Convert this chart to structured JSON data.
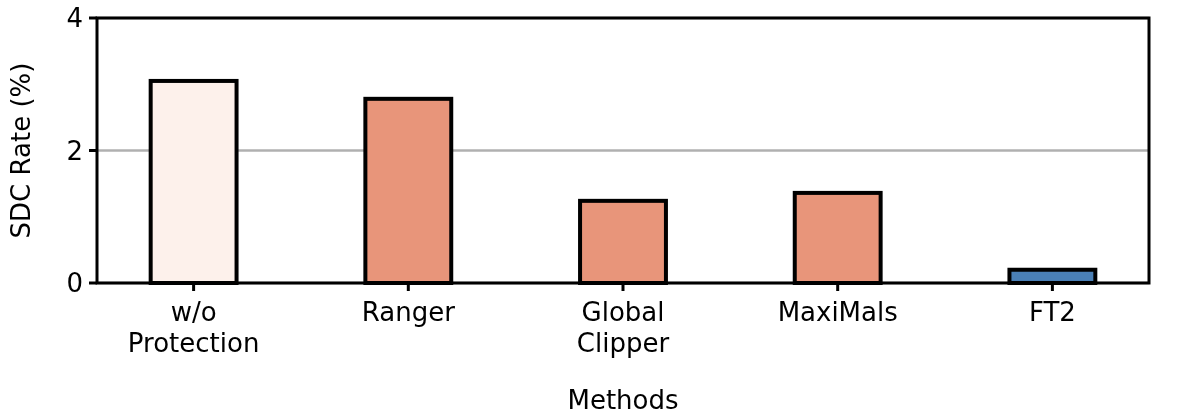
{
  "chart_data": {
    "type": "bar",
    "xlabel": "Methods",
    "ylabel": "SDC Rate (%)",
    "categories": [
      "w/o Protection",
      "Ranger",
      "Global Clipper",
      "MaxiMals",
      "FT2"
    ],
    "values": [
      3.05,
      2.78,
      1.24,
      1.36,
      0.2
    ],
    "colors": [
      "#fdf1eb",
      "#e8957a",
      "#e8957a",
      "#e8957a",
      "#4a7fb5"
    ],
    "ylim": [
      0,
      4
    ],
    "yticks": [
      0,
      2,
      4
    ],
    "grid": "y"
  }
}
